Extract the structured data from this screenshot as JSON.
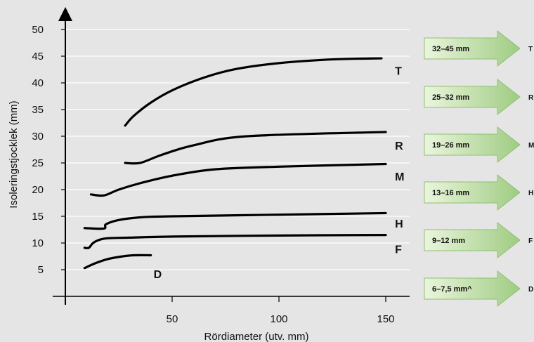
{
  "chart_data": {
    "type": "line",
    "xlabel": "Rördiameter (utv. mm)",
    "ylabel": "Isoleringstjocklek (mm)",
    "xlim": [
      0,
      155
    ],
    "ylim": [
      0,
      55
    ],
    "xticks": [
      50,
      100,
      150
    ],
    "yticks": [
      5,
      10,
      15,
      20,
      25,
      30,
      35,
      40,
      45,
      50
    ],
    "grid": "horizontal",
    "series": [
      {
        "name": "D",
        "color": "#000000",
        "points": [
          [
            9,
            5.3
          ],
          [
            14,
            6.2
          ],
          [
            20,
            7
          ],
          [
            27,
            7.5
          ],
          [
            32,
            7.7
          ],
          [
            40,
            7.7
          ]
        ]
      },
      {
        "name": "F",
        "color": "#000000",
        "points": [
          [
            9,
            9.1
          ],
          [
            11,
            9.1
          ],
          [
            13,
            10
          ],
          [
            16,
            10.6
          ],
          [
            20,
            10.9
          ],
          [
            30,
            11
          ],
          [
            50,
            11.2
          ],
          [
            100,
            11.4
          ],
          [
            150,
            11.5
          ]
        ]
      },
      {
        "name": "H",
        "color": "#000000",
        "points": [
          [
            9,
            12.8
          ],
          [
            18,
            12.7
          ],
          [
            19,
            13.5
          ],
          [
            25,
            14.3
          ],
          [
            35,
            14.8
          ],
          [
            50,
            15
          ],
          [
            100,
            15.3
          ],
          [
            150,
            15.6
          ]
        ]
      },
      {
        "name": "M",
        "color": "#000000",
        "points": [
          [
            12,
            19.1
          ],
          [
            18,
            18.9
          ],
          [
            25,
            20
          ],
          [
            35,
            21.2
          ],
          [
            50,
            22.6
          ],
          [
            70,
            23.8
          ],
          [
            100,
            24.3
          ],
          [
            150,
            24.8
          ]
        ]
      },
      {
        "name": "R",
        "color": "#000000",
        "points": [
          [
            28,
            25
          ],
          [
            35,
            25
          ],
          [
            45,
            26.5
          ],
          [
            60,
            28.3
          ],
          [
            85,
            30
          ],
          [
            150,
            30.8
          ]
        ]
      },
      {
        "name": "T",
        "color": "#000000",
        "points": [
          [
            28,
            32
          ],
          [
            32,
            33.8
          ],
          [
            40,
            36.3
          ],
          [
            50,
            38.6
          ],
          [
            65,
            41
          ],
          [
            80,
            42.6
          ],
          [
            100,
            43.7
          ],
          [
            125,
            44.4
          ],
          [
            148,
            44.6
          ]
        ]
      }
    ]
  },
  "arrows": [
    {
      "range": "32–45 mm",
      "code": "T"
    },
    {
      "range": "25–32 mm",
      "code": "R"
    },
    {
      "range": "19–26 mm",
      "code": "M"
    },
    {
      "range": "13–16 mm",
      "code": "H"
    },
    {
      "range": "9–12 mm",
      "code": "F"
    },
    {
      "range": "6–7,5 mm^",
      "code": "D"
    }
  ],
  "colors": {
    "background": "#e5e5e5",
    "grid": "#ffffff",
    "arrow_fill_light": "#eaf5dd",
    "arrow_fill_dark": "#9fcc82",
    "arrow_stroke": "#8fbf73"
  }
}
